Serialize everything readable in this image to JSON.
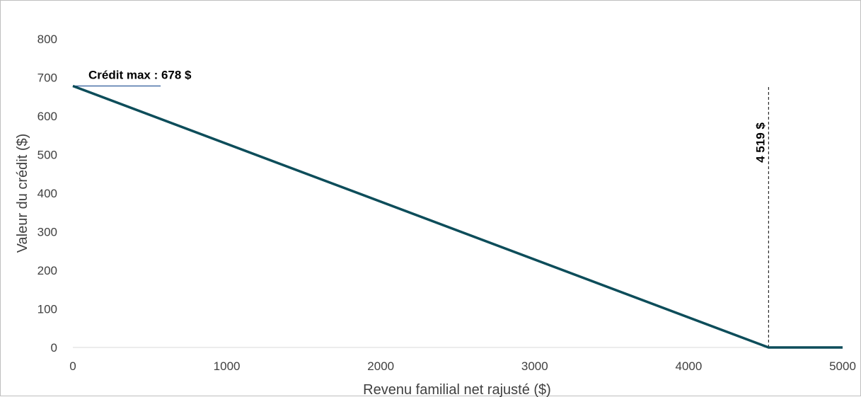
{
  "chart_data": {
    "type": "line",
    "title": "",
    "xlabel": "Revenu familial net rajusté ($)",
    "ylabel": "Valeur du crédit ($)",
    "xlim": [
      0,
      5000
    ],
    "ylim": [
      0,
      800
    ],
    "x_ticks": [
      0,
      1000,
      2000,
      3000,
      4000,
      5000
    ],
    "y_ticks": [
      0,
      100,
      200,
      300,
      400,
      500,
      600,
      700,
      800
    ],
    "x_tick_labels": [
      "0",
      "1000",
      "2000",
      "3000",
      "4000",
      "5000"
    ],
    "y_tick_labels": [
      "0",
      "100",
      "200",
      "300",
      "400",
      "500",
      "600",
      "700",
      "800"
    ],
    "grid": false,
    "legend": "none",
    "series": [
      {
        "color": "#0d4d5a",
        "points": [
          {
            "x": 0,
            "y": 678
          },
          {
            "x": 4519,
            "y": 0
          },
          {
            "x": 5000,
            "y": 0
          }
        ]
      }
    ],
    "annotations": {
      "max_credit": {
        "text": "Crédit max : 678 $",
        "x_from": 0,
        "x_to": 570,
        "y": 678,
        "line_color": "#2e5a9a"
      },
      "threshold": {
        "text": "4 519 $",
        "x": 4519,
        "y_from": 0,
        "y_to": 678
      }
    }
  }
}
